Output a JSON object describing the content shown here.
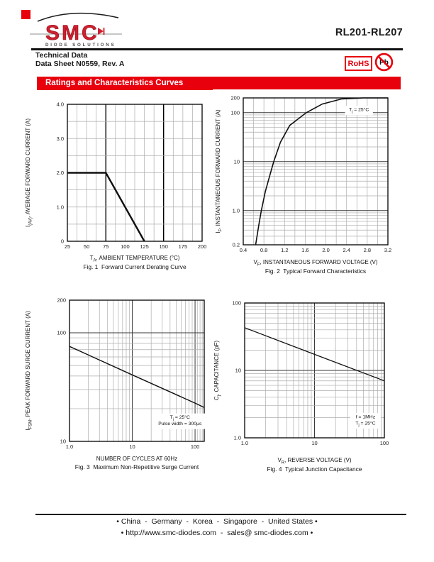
{
  "colors": {
    "accent_red": "#e8000d",
    "logo_red": "#cf2030"
  },
  "header": {
    "brand": "SMC",
    "brand_tagline": "DIODE SOLUTIONS",
    "doc_type": "Technical Data",
    "doc_ref": "Data Sheet N0559, Rev. A",
    "part_number": "RL201-RL207",
    "rohs_label": "RoHS",
    "pb_label": "Pb",
    "section_title": "Ratings and Characteristics Curves"
  },
  "footer": {
    "line1": "• China  -  Germany  -  Korea  -  Singapore  -  United States •",
    "line2": "• http://www.smc-diodes.com  -  sales@ smc-diodes.com •"
  },
  "chart_data": [
    {
      "id": "fig1",
      "type": "line",
      "title": "Fig. 1  Forward Current Derating Curve",
      "xlabel": [
        {
          "t": "T"
        },
        {
          "t": "A",
          "sub": true
        },
        {
          "t": ", AMBIENT TEMPERATURE (°C)"
        }
      ],
      "ylabel": [
        {
          "t": "I"
        },
        {
          "t": "(AV)",
          "sub": true
        },
        {
          "t": ", AVERAGE FORWARD CURRENT (A)"
        }
      ],
      "x": {
        "scale": "linear",
        "min": 25,
        "max": 200,
        "minor": 12.5,
        "emphasis": [
          75,
          150
        ],
        "ticks": [
          [
            "25",
            25
          ],
          [
            "50",
            50
          ],
          [
            "75",
            75
          ],
          [
            "100",
            100
          ],
          [
            "125",
            125
          ],
          [
            "150",
            150
          ],
          [
            "175",
            175
          ],
          [
            "200",
            200
          ]
        ]
      },
      "y": {
        "scale": "linear",
        "min": 0,
        "max": 4,
        "minor": 0.5,
        "emphasis": [],
        "ticks": [
          [
            "0",
            0
          ],
          [
            "1.0",
            1
          ],
          [
            "2.0",
            2
          ],
          [
            "3.0",
            3
          ],
          [
            "4.0",
            4
          ]
        ]
      },
      "series": [
        {
          "name": "average forward current limit",
          "width": 2.4,
          "points": [
            [
              25,
              2.0
            ],
            [
              75,
              2.0
            ],
            [
              125,
              0
            ]
          ]
        }
      ],
      "notes": []
    },
    {
      "id": "fig2",
      "type": "line",
      "title": "Fig. 2  Typical Forward Characteristics",
      "xlabel": [
        {
          "t": "V"
        },
        {
          "t": "F",
          "sub": true
        },
        {
          "t": ", INSTANTANEOUS FORWARD VOLTAGE (V)"
        }
      ],
      "ylabel": [
        {
          "t": "I"
        },
        {
          "t": "F",
          "sub": true
        },
        {
          "t": ", INSTANTANEOUS FORWARD CURRENT (A)"
        }
      ],
      "x": {
        "scale": "linear",
        "min": 0.4,
        "max": 3.2,
        "minor": 0.2,
        "emphasis": [],
        "ticks": [
          [
            "0.4",
            0.4
          ],
          [
            "0.8",
            0.8
          ],
          [
            "1.2",
            1.2
          ],
          [
            "1.6",
            1.6
          ],
          [
            "2.0",
            2.0
          ],
          [
            "2.4",
            2.4
          ],
          [
            "2.8",
            2.8
          ],
          [
            "3.2",
            3.2
          ]
        ]
      },
      "y": {
        "scale": "log",
        "min": 0.2,
        "max": 200,
        "ticks": [
          [
            "0.2",
            0.2
          ],
          [
            "1.0",
            1
          ],
          [
            "10",
            10
          ],
          [
            "100",
            100
          ],
          [
            "200",
            200
          ]
        ]
      },
      "series": [
        {
          "name": "typical forward characteristic",
          "width": 1.6,
          "points": [
            [
              0.64,
              0.2
            ],
            [
              0.7,
              0.5
            ],
            [
              0.75,
              1.0
            ],
            [
              0.83,
              2.5
            ],
            [
              0.92,
              5.5
            ],
            [
              0.99,
              10
            ],
            [
              1.12,
              25
            ],
            [
              1.3,
              55
            ],
            [
              1.62,
              100
            ],
            [
              1.93,
              150
            ],
            [
              2.3,
              190
            ],
            [
              2.72,
              200
            ],
            [
              3.2,
              200
            ]
          ]
        }
      ],
      "notes": [
        {
          "fx": 0.8,
          "fy": 0.09,
          "lines": [
            [
              {
                "t": "T"
              },
              {
                "t": "j",
                "sub": true
              },
              {
                "t": " = 25°C"
              }
            ]
          ]
        }
      ]
    },
    {
      "id": "fig3",
      "type": "line",
      "title": "Fig. 3  Maximum Non-Repetitive Surge Current",
      "xlabel": [
        {
          "t": "NUMBER OF CYCLES AT 60Hz"
        }
      ],
      "ylabel": [
        {
          "t": "I"
        },
        {
          "t": "FSM",
          "sub": true
        },
        {
          "t": ", PEAK FORWARD SURGE CURRENT (A)"
        }
      ],
      "x": {
        "scale": "log",
        "min": 1,
        "max": 140,
        "extraMinors": [
          110,
          120,
          130,
          140
        ],
        "ticks": [
          [
            "1.0",
            1
          ],
          [
            "10",
            10
          ],
          [
            "100",
            100
          ]
        ]
      },
      "y": {
        "scale": "log",
        "min": 10,
        "max": 200,
        "ticks": [
          [
            "10",
            10
          ],
          [
            "100",
            100
          ],
          [
            "200",
            200
          ]
        ]
      },
      "series": [
        {
          "name": "peak forward surge current",
          "width": 1.4,
          "points": [
            [
              1,
              75
            ],
            [
              10,
              41
            ],
            [
              100,
              22.5
            ],
            [
              140,
              20.5
            ]
          ]
        }
      ],
      "notes": [
        {
          "fx": 0.82,
          "fy": 0.84,
          "lines": [
            [
              {
                "t": "T"
              },
              {
                "t": "j",
                "sub": true
              },
              {
                "t": " = 25°C"
              }
            ],
            [
              {
                "t": "Pulse width = 300µs"
              }
            ]
          ]
        }
      ]
    },
    {
      "id": "fig4",
      "type": "line",
      "title": "Fig. 4  Typical Junction Capacitance",
      "xlabel": [
        {
          "t": "V"
        },
        {
          "t": "R",
          "sub": true
        },
        {
          "t": ", REVERSE VOLTAGE (V)"
        }
      ],
      "ylabel": [
        {
          "t": "C"
        },
        {
          "t": "j",
          "sub": true
        },
        {
          "t": ", CAPACITANCE (pF)"
        }
      ],
      "x": {
        "scale": "log",
        "min": 1,
        "max": 100,
        "ticks": [
          [
            "1.0",
            1
          ],
          [
            "10",
            10
          ],
          [
            "100",
            100
          ]
        ]
      },
      "y": {
        "scale": "log",
        "min": 1,
        "max": 100,
        "ticks": [
          [
            "1.0",
            1
          ],
          [
            "10",
            10
          ],
          [
            "100",
            100
          ]
        ]
      },
      "series": [
        {
          "name": "typical junction capacitance",
          "width": 1.3,
          "points": [
            [
              1,
              43
            ],
            [
              10,
              17.3
            ],
            [
              100,
              7
            ]
          ]
        }
      ],
      "notes": [
        {
          "fx": 0.865,
          "fy": 0.855,
          "lines": [
            [
              {
                "t": "f  =  1MHz"
              }
            ],
            [
              {
                "t": "T"
              },
              {
                "t": "j",
                "sub": true
              },
              {
                "t": " =  25°C"
              }
            ]
          ]
        }
      ]
    }
  ]
}
